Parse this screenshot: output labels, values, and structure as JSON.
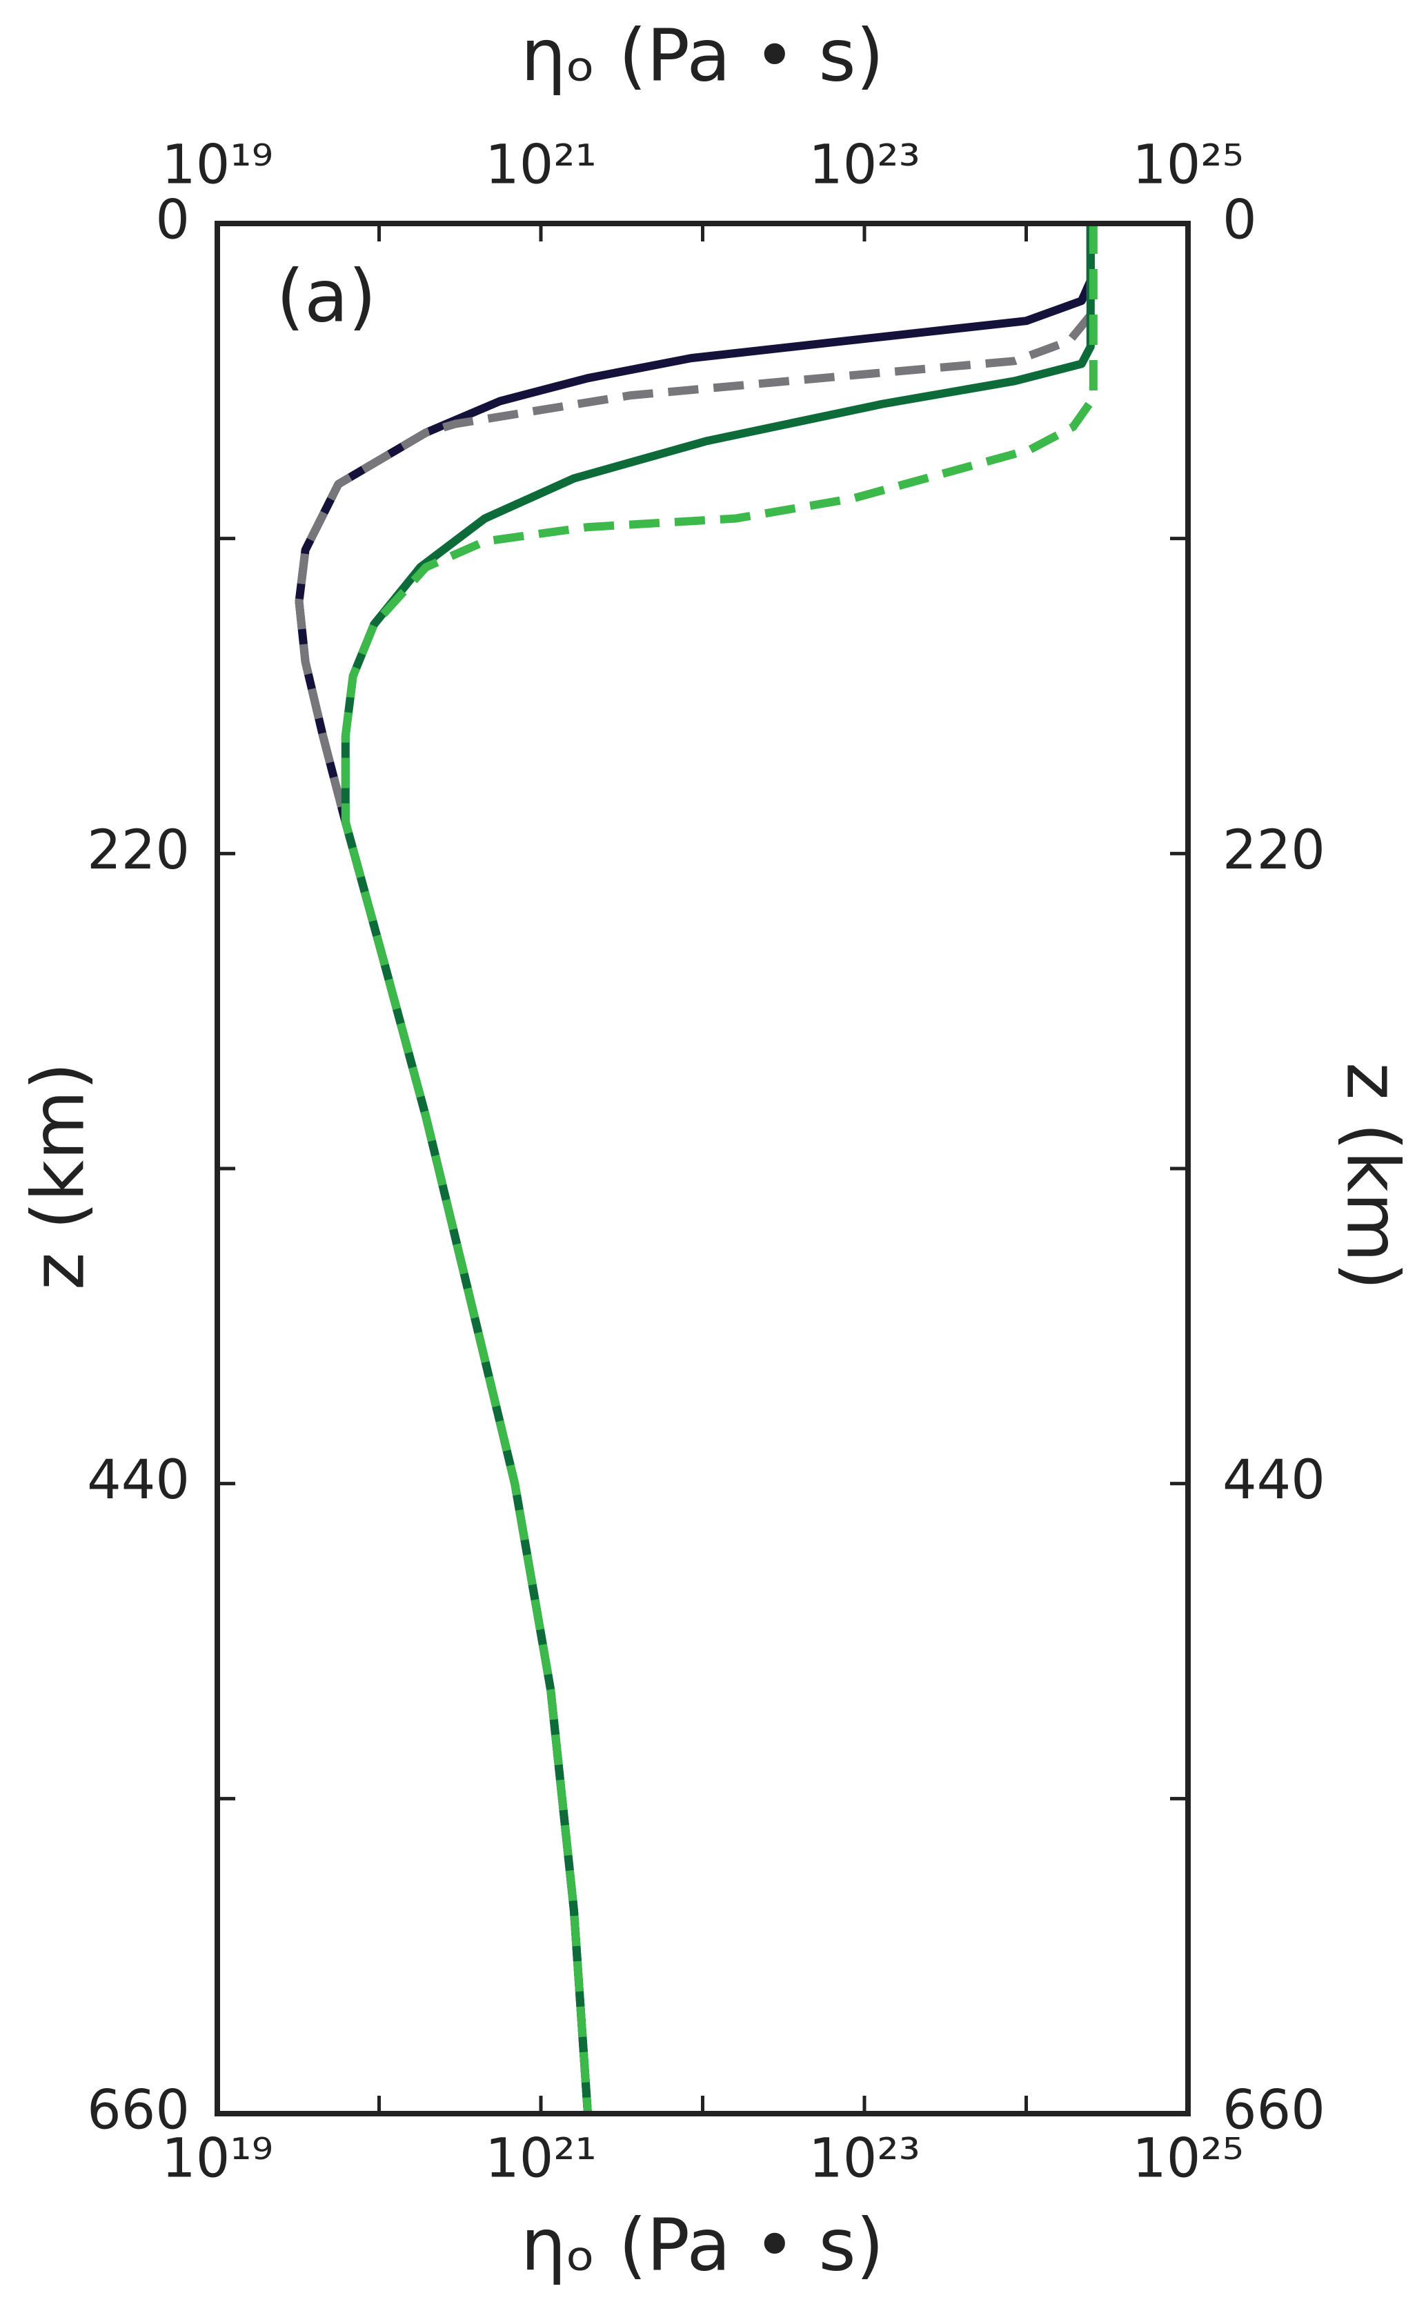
{
  "chart_data": {
    "type": "line",
    "x_label": "ηₒ (Pa • s)",
    "x2_label": "ηₒ (Pa • s)",
    "y_label": "z (km)",
    "y2_label": "z (km)",
    "annotation": "(a)",
    "xscale": "log",
    "yinverted": true,
    "xlim": [
      1e+19,
      1e+25
    ],
    "x2lim": [
      1e+19,
      1e+25
    ],
    "ylim": [
      0,
      660
    ],
    "y2lim": [
      0,
      660
    ],
    "xticks": [
      {
        "value": 1e+19,
        "label": "10¹⁹"
      },
      {
        "value": 1e+20,
        "label": null
      },
      {
        "value": 1e+21,
        "label": "10²¹"
      },
      {
        "value": 1e+22,
        "label": null
      },
      {
        "value": 1e+23,
        "label": "10²³"
      },
      {
        "value": 1e+24,
        "label": null
      },
      {
        "value": 1e+25,
        "label": "10²⁵"
      }
    ],
    "x2ticks": [
      {
        "value": 1e+19,
        "label": "10¹⁹"
      },
      {
        "value": 1e+20,
        "label": null
      },
      {
        "value": 1e+21,
        "label": "10²¹"
      },
      {
        "value": 1e+22,
        "label": null
      },
      {
        "value": 1e+23,
        "label": "10²³"
      },
      {
        "value": 1e+24,
        "label": null
      },
      {
        "value": 1e+25,
        "label": "10²⁵"
      }
    ],
    "yticks": [
      0,
      {
        "value": 110,
        "label": null
      },
      220,
      {
        "value": 330,
        "label": null
      },
      440,
      {
        "value": 550,
        "label": null
      },
      660
    ],
    "y2ticks": [
      0,
      {
        "value": 110,
        "label": null
      },
      220,
      {
        "value": 330,
        "label": null
      },
      440,
      {
        "value": 550,
        "label": null
      },
      660
    ],
    "series": [
      {
        "color": "#14123a",
        "dash": false,
        "x": [
          2.5e+24,
          2.5e+24,
          2.2e+24,
          1e+24,
          7.6e+22,
          8.5e+21,
          1.95e+21,
          5.6e+20,
          1.95e+20,
          5.6e+19,
          3.5e+19,
          3.2e+19,
          3.5e+19,
          4.5e+19,
          6.2e+19,
          1.05e+20,
          1.95e+20,
          3.6e+20,
          6.9e+20,
          1.15e+21,
          1.6e+21,
          1.95e+21
        ],
        "y": [
          0,
          20,
          27,
          34,
          41,
          47,
          54,
          62,
          73,
          91,
          114,
          132,
          153,
          179,
          209,
          256,
          312,
          374,
          440,
          512,
          589,
          660
        ]
      },
      {
        "color": "#77777b",
        "dash": true,
        "x": [
          2.5e+24,
          2.5e+24,
          1.85e+24,
          8.5e+23,
          8.5e+22,
          3.6e+21,
          2.95e+20,
          1.95e+20,
          5.6e+19,
          3.5e+19,
          3.2e+19,
          3.5e+19,
          4.5e+19,
          6.2e+19,
          1.05e+20,
          1.95e+20,
          3.6e+20,
          6.9e+20,
          1.15e+21,
          1.6e+21,
          1.95e+21
        ],
        "y": [
          0,
          32,
          41,
          48,
          53,
          60,
          70,
          73,
          91,
          114,
          132,
          153,
          179,
          209,
          256,
          312,
          374,
          440,
          512,
          589,
          660
        ]
      },
      {
        "color": "#0d6b3a",
        "dash": false,
        "x": [
          2.5e+24,
          2.5e+24,
          2.2e+24,
          8.5e+23,
          1.3e+23,
          1.05e+22,
          1.6e+21,
          4.5e+20,
          1.8e+20,
          9.3e+19,
          6.9e+19,
          6.2e+19,
          6.2e+19,
          1.05e+20,
          1.95e+20,
          3.6e+20,
          6.9e+20,
          1.15e+21,
          1.6e+21,
          1.95e+21
        ],
        "y": [
          0,
          43,
          49,
          55,
          63,
          76,
          89,
          103,
          120,
          140,
          158,
          179,
          209,
          256,
          312,
          374,
          440,
          512,
          589,
          660
        ]
      },
      {
        "color": "#3cb94a",
        "dash": true,
        "x": [
          2.6e+24,
          2.6e+24,
          1.95e+24,
          1.05e+24,
          8.5e+22,
          1.6e+22,
          1.95e+21,
          4.5e+20,
          1.95e+20,
          9.3e+19,
          6.9e+19,
          6.2e+19,
          6.2e+19,
          1.05e+20,
          1.95e+20,
          3.6e+20,
          6.9e+20,
          1.15e+21,
          1.6e+21,
          1.95e+21
        ],
        "y": [
          0,
          61,
          71,
          79,
          96,
          103,
          106,
          111,
          120,
          140,
          158,
          179,
          209,
          256,
          312,
          374,
          440,
          512,
          589,
          660
        ]
      }
    ]
  }
}
